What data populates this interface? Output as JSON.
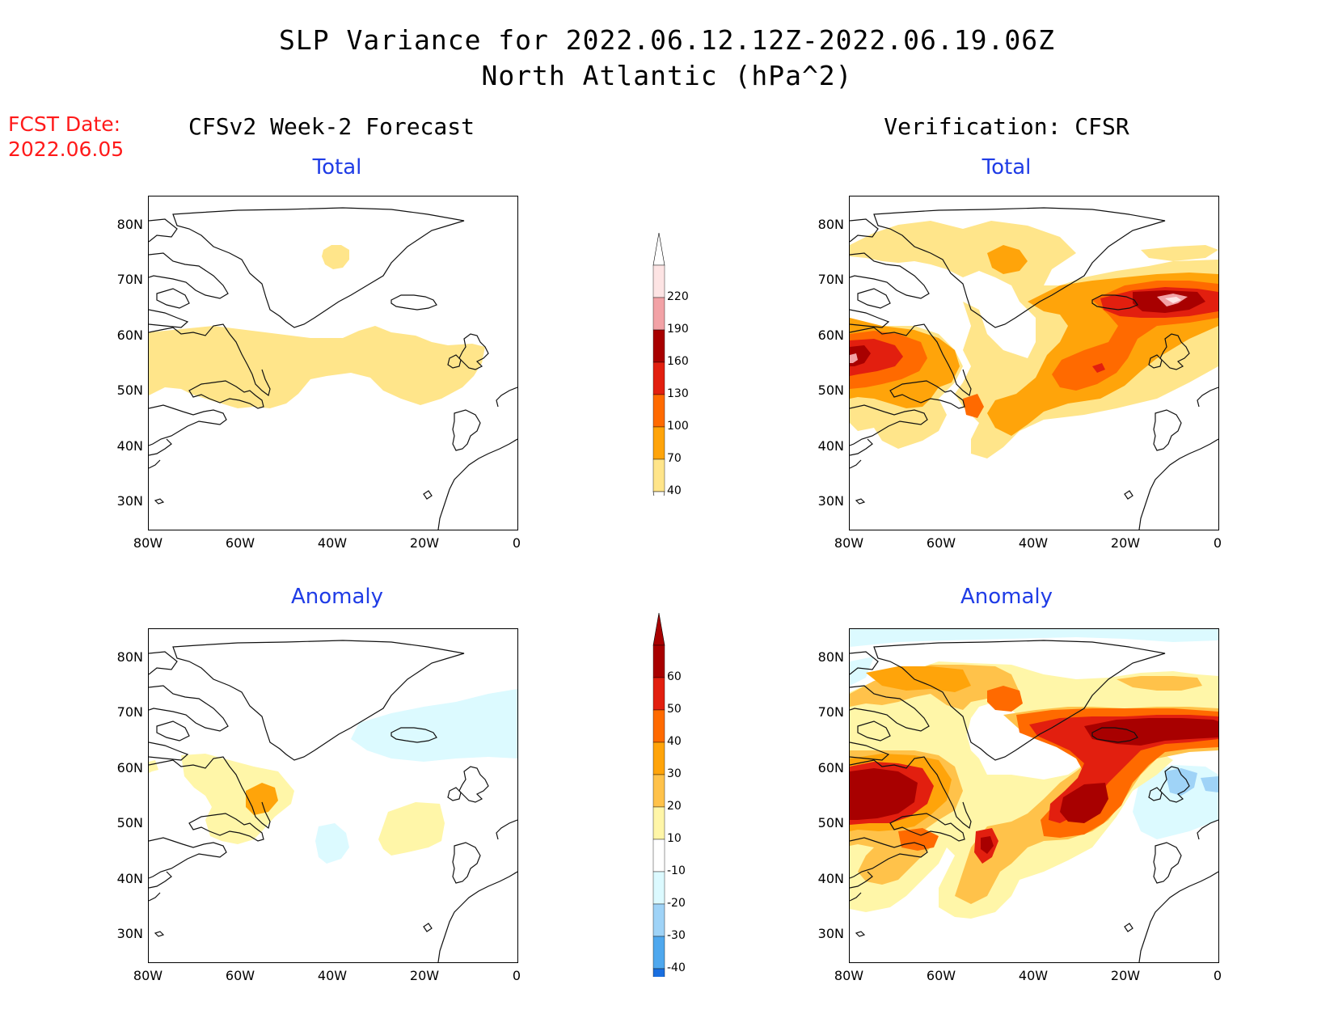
{
  "header": {
    "title_line1": "SLP Variance for 2022.06.12.12Z-2022.06.19.06Z",
    "title_line2": "North Atlantic (hPa^2)",
    "fcst_label": "FCST Date:",
    "fcst_date": "2022.06.05"
  },
  "columns": {
    "left_title": "CFSv2 Week-2 Forecast",
    "right_title": "Verification: CFSR"
  },
  "panels": {
    "forecast_total": {
      "subtitle": "Total"
    },
    "verification_total": {
      "subtitle": "Total"
    },
    "forecast_anomaly": {
      "subtitle": "Anomaly"
    },
    "verification_anomaly": {
      "subtitle": "Anomaly"
    }
  },
  "axes": {
    "lat_labels": [
      "80N",
      "70N",
      "60N",
      "50N",
      "40N",
      "30N"
    ],
    "lon_labels": [
      "80W",
      "60W",
      "40W",
      "20W",
      "0"
    ]
  },
  "colorbar_total": {
    "labels": [
      "220",
      "190",
      "160",
      "130",
      "100",
      "70",
      "40"
    ],
    "colors": [
      "#fde4e4",
      "#f2a2a6",
      "#a80000",
      "#e21f0f",
      "#ff6a00",
      "#ffa40a",
      "#ffe58a"
    ]
  },
  "colorbar_anomaly": {
    "labels": [
      "60",
      "50",
      "40",
      "30",
      "20",
      "10",
      "-10",
      "-20",
      "-30",
      "-40"
    ],
    "colors": [
      "#a80000",
      "#e21f0f",
      "#ff6a00",
      "#ffa40a",
      "#ffc24a",
      "#fff6a8",
      "#ffffff",
      "#dcfaff",
      "#9fd3f7",
      "#4fa8ee",
      "#1a6fe0"
    ]
  }
}
